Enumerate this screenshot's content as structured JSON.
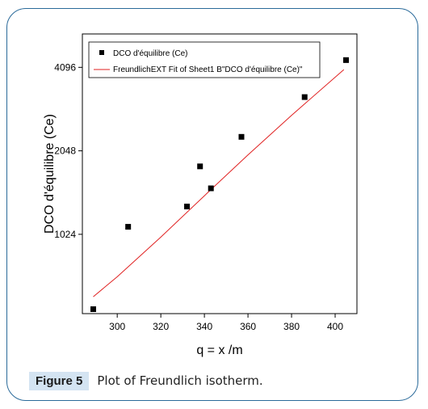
{
  "chart_data": {
    "type": "scatter",
    "xlabel": "q = x /m",
    "ylabel": "DCO d'équilibre (Ce)",
    "x_ticks": [
      300,
      320,
      340,
      360,
      380,
      400
    ],
    "y_ticks": [
      1024,
      2048,
      4096
    ],
    "y_tick_labels": [
      "1024",
      "2048",
      "4096"
    ],
    "xlim": [
      284,
      410
    ],
    "ylim_log2": [
      9.05,
      12.4
    ],
    "y_scale": "log2",
    "grid": false,
    "legend_position": "top-left",
    "series": [
      {
        "name": "DCO d'équilibre (Ce)",
        "kind": "points",
        "color": "#000000",
        "points": [
          {
            "x": 289,
            "y": 550
          },
          {
            "x": 305,
            "y": 1090
          },
          {
            "x": 332,
            "y": 1290
          },
          {
            "x": 338,
            "y": 1800
          },
          {
            "x": 343,
            "y": 1500
          },
          {
            "x": 357,
            "y": 2300
          },
          {
            "x": 386,
            "y": 3200
          },
          {
            "x": 405,
            "y": 4350
          }
        ]
      },
      {
        "name": "FreundlichEXT Fit of Sheet1 B\"DCO d'équilibre (Ce)\"",
        "kind": "line",
        "color": "#e02020",
        "points": [
          {
            "x": 289,
            "y": 610
          },
          {
            "x": 300,
            "y": 720
          },
          {
            "x": 320,
            "y": 1000
          },
          {
            "x": 340,
            "y": 1410
          },
          {
            "x": 360,
            "y": 1980
          },
          {
            "x": 380,
            "y": 2750
          },
          {
            "x": 404,
            "y": 4020
          }
        ]
      }
    ]
  },
  "caption": {
    "label": "Figure 5",
    "text": "Plot of Freundlich isotherm."
  }
}
